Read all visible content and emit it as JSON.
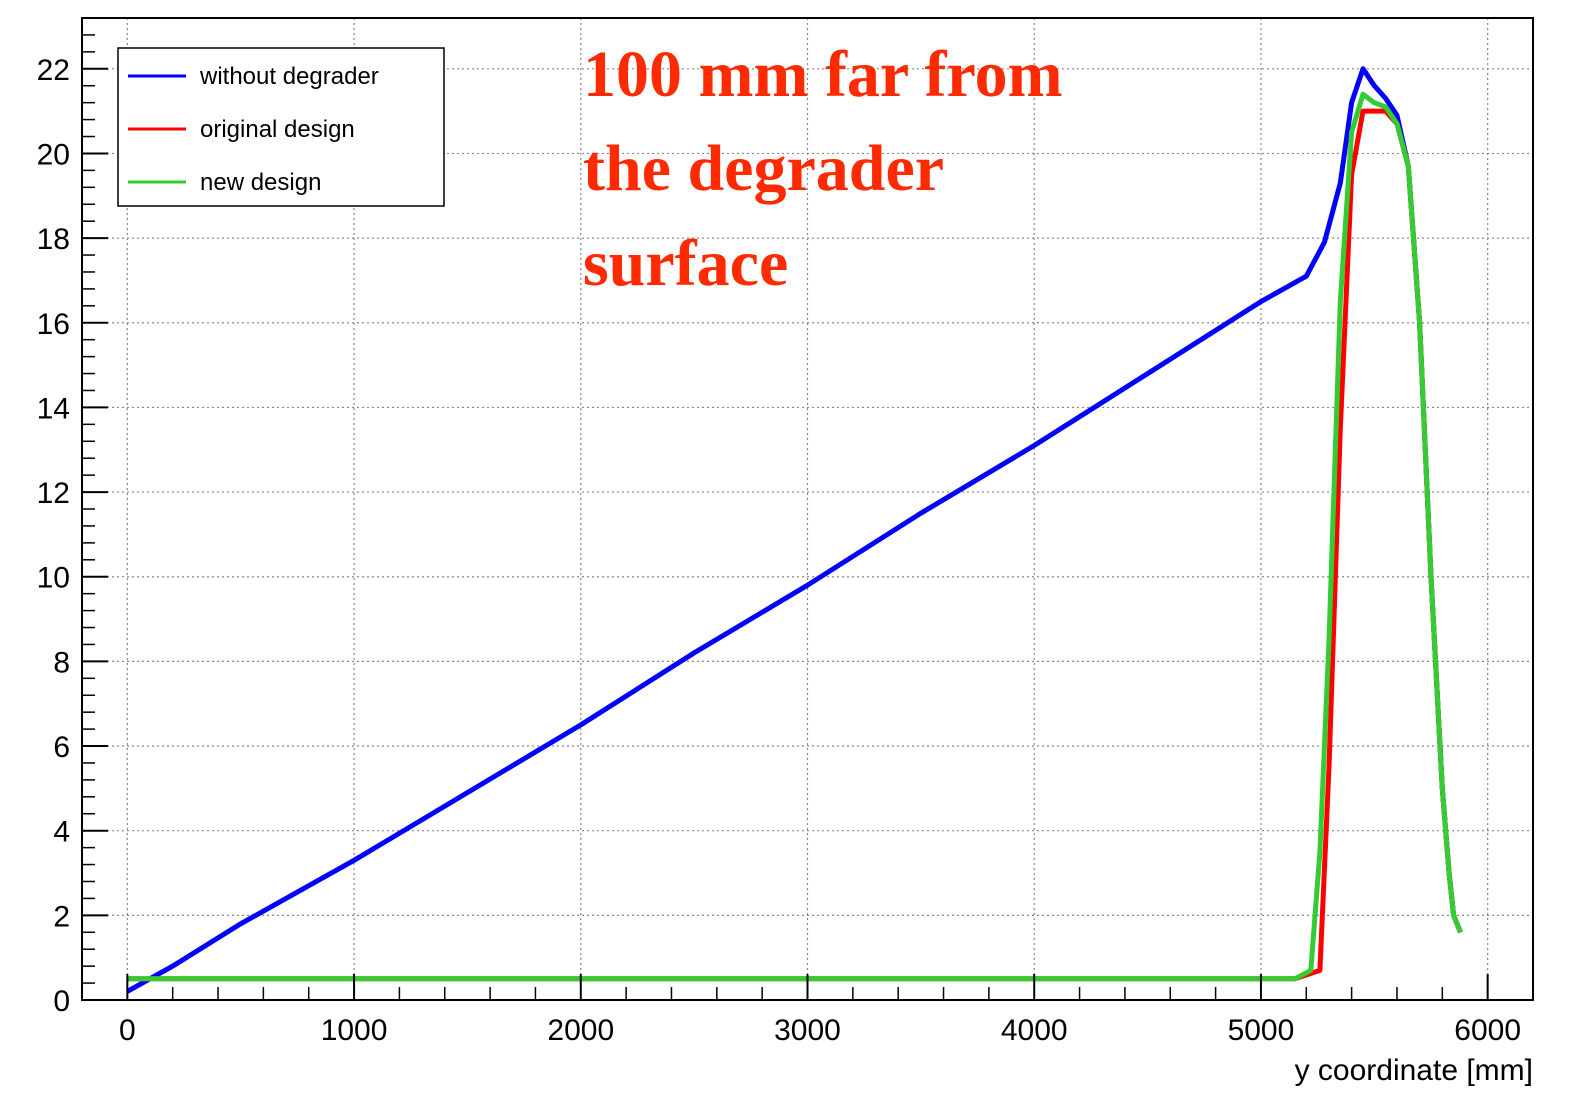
{
  "chart_data": {
    "type": "line",
    "xlabel": "y coordinate [mm]",
    "ylabel": "",
    "xlim": [
      -200,
      6200
    ],
    "ylim": [
      0,
      23.2
    ],
    "x_ticks": [
      0,
      1000,
      2000,
      3000,
      4000,
      5000,
      6000
    ],
    "y_ticks": [
      0,
      2,
      4,
      6,
      8,
      10,
      12,
      14,
      16,
      18,
      20,
      22
    ],
    "grid": true,
    "legend_position": "top-left",
    "annotation": [
      "100 mm far from",
      "the degrader",
      "surface"
    ],
    "series": [
      {
        "name": "without degrader",
        "color": "#0000ff",
        "x": [
          0,
          200,
          500,
          1000,
          1500,
          2000,
          2500,
          3000,
          3500,
          4000,
          4500,
          5000,
          5200,
          5280,
          5350,
          5400,
          5450,
          5500,
          5550,
          5600,
          5650,
          5700,
          5750,
          5800,
          5830,
          5850,
          5880
        ],
        "y": [
          0.2,
          0.8,
          1.8,
          3.3,
          4.9,
          6.5,
          8.2,
          9.8,
          11.5,
          13.1,
          14.8,
          16.5,
          17.1,
          17.9,
          19.3,
          21.2,
          22.0,
          21.6,
          21.3,
          20.9,
          19.7,
          16.0,
          10.0,
          5.0,
          3.0,
          2.0,
          1.6
        ]
      },
      {
        "name": "original design",
        "color": "#ff0000",
        "x": [
          0,
          1000,
          2000,
          3000,
          4000,
          5000,
          5150,
          5260,
          5300,
          5350,
          5400,
          5450,
          5500,
          5550,
          5600,
          5650,
          5700,
          5750,
          5800,
          5830,
          5850,
          5880
        ],
        "y": [
          0.5,
          0.5,
          0.5,
          0.5,
          0.5,
          0.5,
          0.5,
          0.7,
          5.5,
          13.5,
          19.5,
          21.0,
          21.0,
          21.0,
          20.7,
          19.7,
          16.0,
          10.0,
          5.0,
          3.0,
          2.0,
          1.6
        ]
      },
      {
        "name": "new design",
        "color": "#33cc33",
        "x": [
          0,
          1000,
          2000,
          3000,
          4000,
          5000,
          5150,
          5220,
          5260,
          5300,
          5350,
          5400,
          5450,
          5500,
          5550,
          5600,
          5650,
          5700,
          5750,
          5800,
          5830,
          5850,
          5880
        ],
        "y": [
          0.5,
          0.5,
          0.5,
          0.5,
          0.5,
          0.5,
          0.5,
          0.7,
          3.5,
          8.5,
          16.5,
          20.5,
          21.4,
          21.2,
          21.1,
          20.7,
          19.7,
          16.0,
          10.0,
          5.0,
          3.0,
          2.0,
          1.6
        ]
      }
    ]
  }
}
